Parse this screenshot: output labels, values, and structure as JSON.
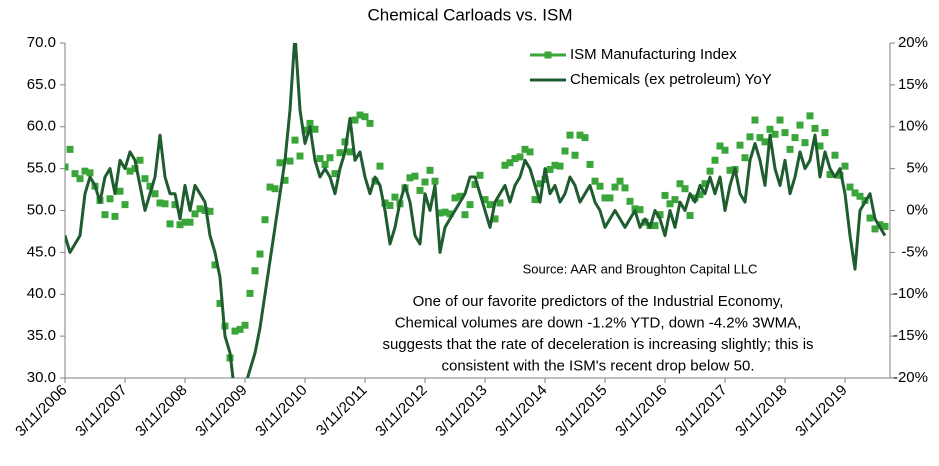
{
  "chart_data": {
    "type": "line",
    "title": "Chemical Carloads vs. ISM",
    "x": [
      "2006-03",
      "2006-04",
      "2006-05",
      "2006-06",
      "2006-07",
      "2006-08",
      "2006-09",
      "2006-10",
      "2006-11",
      "2006-12",
      "2007-01",
      "2007-02",
      "2007-03",
      "2007-04",
      "2007-05",
      "2007-06",
      "2007-07",
      "2007-08",
      "2007-09",
      "2007-10",
      "2007-11",
      "2007-12",
      "2008-01",
      "2008-02",
      "2008-03",
      "2008-04",
      "2008-05",
      "2008-06",
      "2008-07",
      "2008-08",
      "2008-09",
      "2008-10",
      "2008-11",
      "2008-12",
      "2009-01",
      "2009-02",
      "2009-03",
      "2009-04",
      "2009-05",
      "2009-06",
      "2009-07",
      "2009-08",
      "2009-09",
      "2009-10",
      "2009-11",
      "2009-12",
      "2010-01",
      "2010-02",
      "2010-03",
      "2010-04",
      "2010-05",
      "2010-06",
      "2010-07",
      "2010-08",
      "2010-09",
      "2010-10",
      "2010-11",
      "2010-12",
      "2011-01",
      "2011-02",
      "2011-03",
      "2011-04",
      "2011-05",
      "2011-06",
      "2011-07",
      "2011-08",
      "2011-09",
      "2011-10",
      "2011-11",
      "2011-12",
      "2012-01",
      "2012-02",
      "2012-03",
      "2012-04",
      "2012-05",
      "2012-06",
      "2012-07",
      "2012-08",
      "2012-09",
      "2012-10",
      "2012-11",
      "2012-12",
      "2013-01",
      "2013-02",
      "2013-03",
      "2013-04",
      "2013-05",
      "2013-06",
      "2013-07",
      "2013-08",
      "2013-09",
      "2013-10",
      "2013-11",
      "2013-12",
      "2014-01",
      "2014-02",
      "2014-03",
      "2014-04",
      "2014-05",
      "2014-06",
      "2014-07",
      "2014-08",
      "2014-09",
      "2014-10",
      "2014-11",
      "2014-12",
      "2015-01",
      "2015-02",
      "2015-03",
      "2015-04",
      "2015-05",
      "2015-06",
      "2015-07",
      "2015-08",
      "2015-09",
      "2015-10",
      "2015-11",
      "2015-12",
      "2016-01",
      "2016-02",
      "2016-03",
      "2016-04",
      "2016-05",
      "2016-06",
      "2016-07",
      "2016-08",
      "2016-09",
      "2016-10",
      "2016-11",
      "2016-12",
      "2017-01",
      "2017-02",
      "2017-03",
      "2017-04",
      "2017-05",
      "2017-06",
      "2017-07",
      "2017-08",
      "2017-09",
      "2017-10",
      "2017-11",
      "2017-12",
      "2018-01",
      "2018-02",
      "2018-03",
      "2018-04",
      "2018-05",
      "2018-06",
      "2018-07",
      "2018-08",
      "2018-09",
      "2018-10",
      "2018-11",
      "2018-12",
      "2019-01",
      "2019-02",
      "2019-03",
      "2019-04",
      "2019-05",
      "2019-06",
      "2019-07",
      "2019-08",
      "2019-09",
      "2019-10",
      "2019-11"
    ],
    "series": [
      {
        "name": "ISM Manufacturing Index",
        "color": "#3aa63a",
        "marker": "square",
        "values": [
          55.2,
          57.3,
          54.4,
          53.8,
          54.7,
          54.5,
          52.9,
          51.2,
          49.5,
          51.4,
          49.3,
          52.3,
          50.7,
          54.7,
          55.0,
          56.0,
          53.8,
          52.9,
          52.0,
          50.9,
          50.8,
          48.4,
          50.7,
          48.3,
          48.6,
          48.6,
          49.6,
          50.2,
          50.0,
          49.9,
          43.5,
          38.9,
          36.2,
          32.4,
          35.6,
          35.8,
          36.3,
          40.1,
          42.8,
          44.8,
          48.9,
          52.8,
          52.6,
          55.7,
          53.6,
          55.9,
          58.4,
          56.5,
          59.6,
          60.4,
          59.7,
          56.2,
          55.5,
          56.3,
          54.4,
          56.9,
          58.2,
          57.0,
          60.8,
          61.4,
          61.2,
          60.4,
          53.5,
          55.3,
          50.9,
          50.6,
          51.6,
          50.8,
          52.7,
          53.9,
          54.1,
          52.4,
          53.4,
          54.8,
          53.5,
          49.7,
          49.8,
          49.6,
          51.5,
          51.7,
          49.5,
          50.7,
          53.1,
          54.2,
          51.3,
          50.7,
          49.0,
          50.9,
          55.4,
          55.7,
          56.2,
          56.4,
          57.3,
          57.0,
          51.3,
          53.2,
          53.7,
          54.9,
          55.4,
          55.3,
          57.1,
          59.0,
          56.6,
          59.0,
          58.7,
          55.5,
          53.5,
          52.9,
          51.5,
          51.5,
          52.8,
          53.5,
          52.7,
          51.1,
          50.2,
          50.1,
          48.6,
          48.2,
          48.2,
          49.5,
          51.8,
          50.8,
          51.3,
          53.2,
          52.6,
          49.4,
          51.5,
          51.9,
          53.2,
          54.7,
          56.0,
          57.7,
          57.2,
          54.8,
          54.9,
          57.8,
          56.3,
          58.8,
          60.8,
          58.7,
          58.2,
          59.7,
          59.1,
          60.8,
          59.3,
          57.3,
          58.7,
          60.2,
          58.1,
          61.3,
          59.8,
          57.7,
          59.3,
          54.3,
          56.6,
          54.2,
          55.3,
          52.8,
          52.1,
          51.7,
          51.2,
          49.1,
          47.8,
          48.3,
          48.1
        ]
      },
      {
        "name": "Chemicals (ex petroleum) YoY",
        "color": "#1f5c30",
        "axis": "y2",
        "values": [
          -3,
          -5,
          -4,
          -3,
          2,
          4,
          3,
          1,
          4,
          5,
          2,
          6,
          5,
          7,
          6,
          3,
          0,
          2,
          4,
          9,
          4,
          2,
          2,
          -1,
          3,
          0,
          3,
          2,
          1,
          -3,
          -5,
          -8,
          -15,
          -17,
          -22,
          -24,
          -21,
          -19,
          -17,
          -14,
          -10,
          -6,
          -2,
          2,
          6,
          12,
          21,
          12,
          8,
          10,
          6,
          4,
          5,
          4,
          2,
          5,
          7,
          11,
          6,
          7,
          4,
          2,
          4,
          3,
          0,
          -4,
          -2,
          1,
          3,
          1,
          -3,
          -4,
          2,
          0,
          3,
          -5,
          -2,
          -1,
          0,
          1,
          2,
          4,
          4,
          2,
          0,
          -2,
          1,
          2,
          3,
          1,
          3,
          4,
          6,
          5,
          3,
          1,
          5,
          2,
          3,
          1,
          2,
          4,
          3,
          1,
          2,
          3,
          1,
          0,
          -2,
          -1,
          0,
          -1,
          -2,
          -1,
          0,
          -2,
          -1,
          -2,
          0,
          -1,
          -3,
          0,
          -2,
          1,
          0,
          2,
          1,
          3,
          2,
          4,
          2,
          4,
          0,
          3,
          5,
          2,
          1,
          6,
          8,
          6,
          3,
          9,
          5,
          3,
          6,
          2,
          4,
          7,
          5,
          6,
          9,
          4,
          7,
          5,
          4,
          5,
          2,
          -3,
          -7,
          0,
          1,
          2,
          -1,
          -2,
          -3
        ]
      }
    ],
    "xlim": [
      "2006-03",
      "2019-12"
    ],
    "xticks": [
      {
        "value": "2006-03",
        "label": "3/11/2006"
      },
      {
        "value": "2007-03",
        "label": "3/11/2007"
      },
      {
        "value": "2008-03",
        "label": "3/11/2008"
      },
      {
        "value": "2009-03",
        "label": "3/11/2009"
      },
      {
        "value": "2010-03",
        "label": "3/11/2010"
      },
      {
        "value": "2011-03",
        "label": "3/11/2011"
      },
      {
        "value": "2012-03",
        "label": "3/11/2012"
      },
      {
        "value": "2013-03",
        "label": "3/11/2013"
      },
      {
        "value": "2014-03",
        "label": "3/11/2014"
      },
      {
        "value": "2015-03",
        "label": "3/11/2015"
      },
      {
        "value": "2016-03",
        "label": "3/11/2016"
      },
      {
        "value": "2017-03",
        "label": "3/11/2017"
      },
      {
        "value": "2018-03",
        "label": "3/11/2018"
      },
      {
        "value": "2019-03",
        "label": "3/11/2019"
      }
    ],
    "ylim": [
      30,
      70
    ],
    "yticks": [
      {
        "value": 30,
        "label": "30.0"
      },
      {
        "value": 35,
        "label": "35.0"
      },
      {
        "value": 40,
        "label": "40.0"
      },
      {
        "value": 45,
        "label": "45.0"
      },
      {
        "value": 50,
        "label": "50.0"
      },
      {
        "value": 55,
        "label": "55.0"
      },
      {
        "value": 60,
        "label": "60.0"
      },
      {
        "value": 65,
        "label": "65.0"
      },
      {
        "value": 70,
        "label": "70.0"
      }
    ],
    "y2lim": [
      -20,
      20
    ],
    "y2ticks": [
      {
        "value": -20,
        "label": "-20%"
      },
      {
        "value": -15,
        "label": "-15%"
      },
      {
        "value": -10,
        "label": "-10%"
      },
      {
        "value": -5,
        "label": "-5%"
      },
      {
        "value": 0,
        "label": "0%"
      },
      {
        "value": 5,
        "label": "5%"
      },
      {
        "value": 10,
        "label": "10%"
      },
      {
        "value": 15,
        "label": "15%"
      },
      {
        "value": 20,
        "label": "20%"
      }
    ],
    "grid": false,
    "legend": "top-right",
    "source": "Source: AAR and Broughton Capital LLC",
    "note": [
      "One of our favorite predictors of the Industrial Economy,",
      "Chemical volumes are down -1.2% YTD, down -4.2% 3WMA,",
      "suggests that the rate of deceleration is increasing slightly; this is",
      "consistent with the ISM's recent drop below 50."
    ]
  }
}
